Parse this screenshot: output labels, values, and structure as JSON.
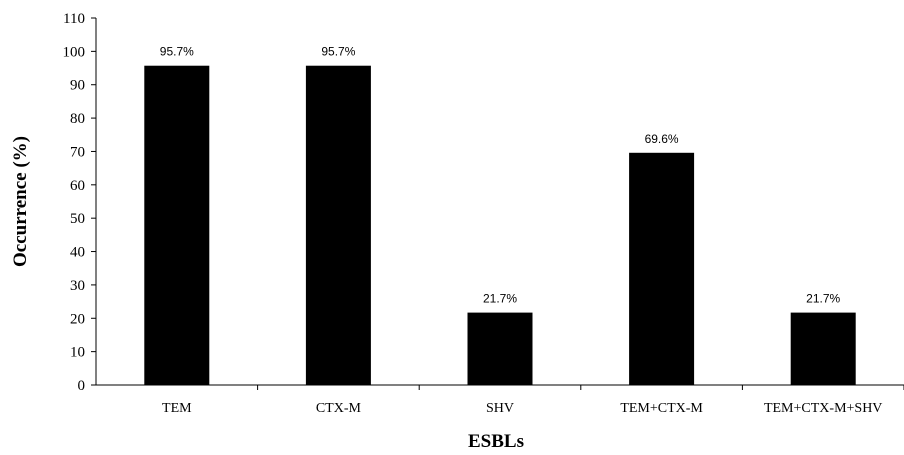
{
  "chart_data": {
    "type": "bar",
    "title": "",
    "xlabel": "ESBLs",
    "ylabel": "Occurrence (%)",
    "categories": [
      "TEM",
      "CTX-M",
      "SHV",
      "TEM+CTX-M",
      "TEM+CTX-M+SHV"
    ],
    "values": [
      95.7,
      95.7,
      21.7,
      69.6,
      21.7
    ],
    "data_labels": [
      "95.7%",
      "95.7%",
      "21.7%",
      "69.6%",
      "21.7%"
    ],
    "ylim": [
      0,
      110
    ],
    "yticks": [
      0,
      10,
      20,
      30,
      40,
      50,
      60,
      70,
      80,
      90,
      100,
      110
    ],
    "grid": false,
    "legend": "none",
    "bar_color": "#000000"
  }
}
